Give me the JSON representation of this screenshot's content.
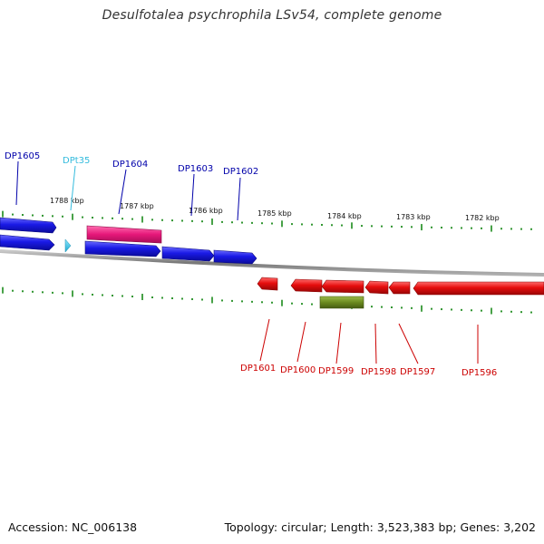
{
  "title": "Desulfotalea psychrophila LSv54, complete genome",
  "footer": {
    "accession": "Accession: NC_006138",
    "topology": "Topology: circular; Length: 3,523,383 bp; Genes: 3,202"
  },
  "colors": {
    "forward_gene": "#1a1ae6",
    "reverse_gene": "#e60d0d",
    "trna": "#33ccee",
    "pink_feature": "#e6177a",
    "olive_feature": "#6b8a1f",
    "ticks": "#1a8a1a",
    "backbone": "#8c8c8c",
    "forward_label": "#0000aa",
    "trna_label": "#33bbdd",
    "reverse_label": "#cc0000"
  },
  "scale_labels": [
    "1788 kbp",
    "1787 kbp",
    "1786 kbp",
    "1785 kbp",
    "1784 kbp",
    "1783 kbp",
    "1782 kbp"
  ],
  "forward_labels": [
    "DP1605",
    "DPt35",
    "DP1604",
    "DP1603",
    "DP1602"
  ],
  "reverse_labels": [
    "DP1601",
    "DP1600",
    "DP1599",
    "DP1598",
    "DP1597",
    "DP1596"
  ]
}
